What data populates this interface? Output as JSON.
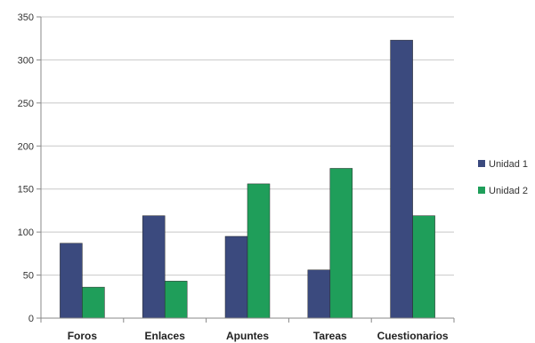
{
  "chart_data": {
    "type": "bar",
    "categories": [
      "Foros",
      "Enlaces",
      "Apuntes",
      "Tareas",
      "Cuestionarios"
    ],
    "series": [
      {
        "name": "Unidad 1",
        "color": "#3b4a7e",
        "values": [
          87,
          119,
          95,
          56,
          323
        ]
      },
      {
        "name": "Unidad 2",
        "color": "#1f9e5a",
        "values": [
          36,
          43,
          156,
          174,
          119
        ]
      }
    ],
    "ylim": [
      0,
      350
    ],
    "yticks": [
      0,
      50,
      100,
      150,
      200,
      250,
      300,
      350
    ],
    "grid": true,
    "legend": "right"
  }
}
